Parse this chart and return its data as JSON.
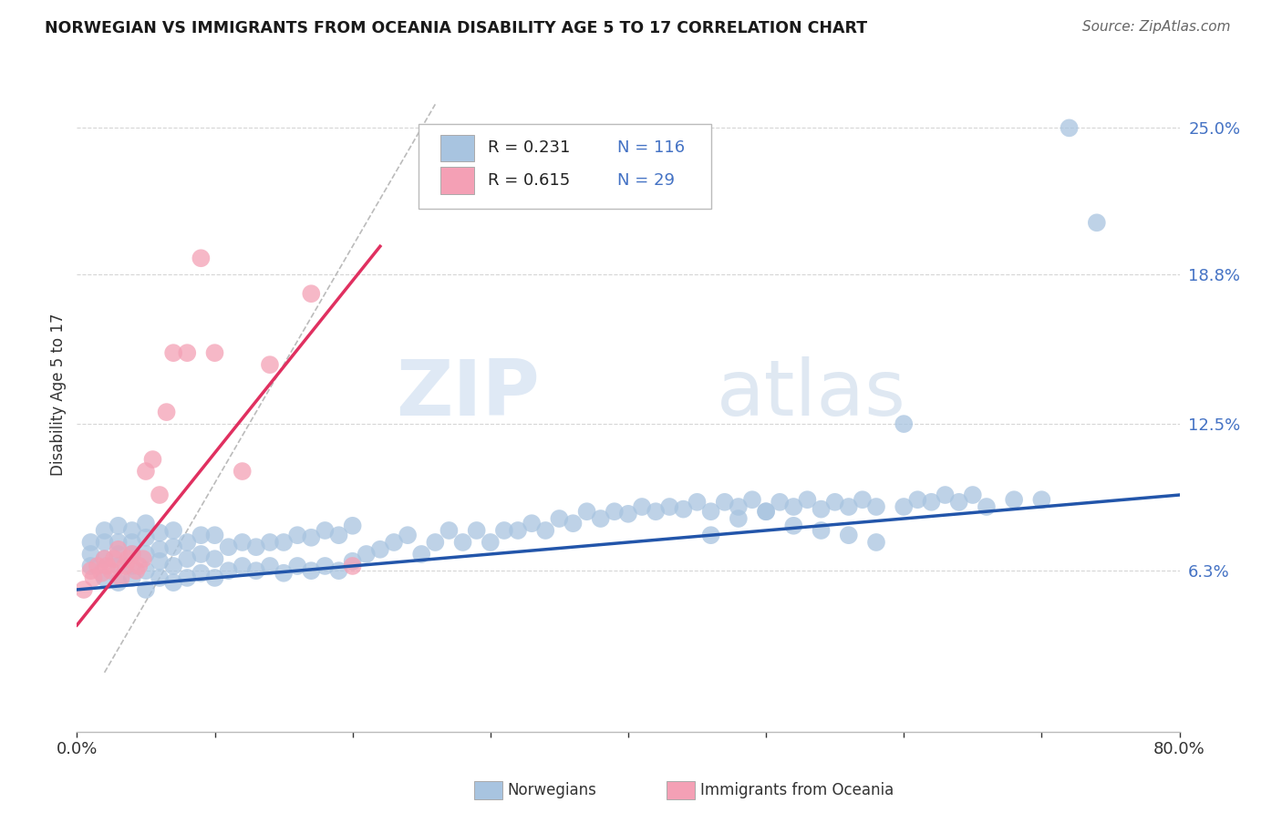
{
  "title": "NORWEGIAN VS IMMIGRANTS FROM OCEANIA DISABILITY AGE 5 TO 17 CORRELATION CHART",
  "source": "Source: ZipAtlas.com",
  "ylabel": "Disability Age 5 to 17",
  "xlim": [
    0.0,
    0.8
  ],
  "ylim": [
    -0.005,
    0.28
  ],
  "ytick_positions": [
    0.063,
    0.125,
    0.188,
    0.25
  ],
  "ytick_labels": [
    "6.3%",
    "12.5%",
    "18.8%",
    "25.0%"
  ],
  "norwegian_color": "#a8c4e0",
  "immigrant_color": "#f4a0b5",
  "norwegian_line_color": "#2255aa",
  "immigrant_line_color": "#e03060",
  "watermark_zip": "ZIP",
  "watermark_atlas": "atlas",
  "legend_R_norwegian": "R = 0.231",
  "legend_N_norwegian": "N = 116",
  "legend_R_immigrant": "R = 0.615",
  "legend_N_immigrant": "N = 29",
  "grid_color": "#cccccc",
  "background_color": "#ffffff",
  "nor_x": [
    0.01,
    0.01,
    0.01,
    0.02,
    0.02,
    0.02,
    0.02,
    0.03,
    0.03,
    0.03,
    0.03,
    0.03,
    0.04,
    0.04,
    0.04,
    0.04,
    0.04,
    0.05,
    0.05,
    0.05,
    0.05,
    0.05,
    0.06,
    0.06,
    0.06,
    0.06,
    0.07,
    0.07,
    0.07,
    0.07,
    0.08,
    0.08,
    0.08,
    0.09,
    0.09,
    0.09,
    0.1,
    0.1,
    0.1,
    0.11,
    0.11,
    0.12,
    0.12,
    0.13,
    0.13,
    0.14,
    0.14,
    0.15,
    0.15,
    0.16,
    0.16,
    0.17,
    0.17,
    0.18,
    0.18,
    0.19,
    0.19,
    0.2,
    0.2,
    0.21,
    0.22,
    0.23,
    0.24,
    0.25,
    0.26,
    0.27,
    0.28,
    0.29,
    0.3,
    0.31,
    0.32,
    0.33,
    0.34,
    0.35,
    0.36,
    0.37,
    0.38,
    0.39,
    0.4,
    0.41,
    0.42,
    0.43,
    0.44,
    0.45,
    0.46,
    0.47,
    0.48,
    0.49,
    0.5,
    0.51,
    0.52,
    0.53,
    0.54,
    0.55,
    0.56,
    0.57,
    0.58,
    0.6,
    0.61,
    0.62,
    0.63,
    0.64,
    0.65,
    0.66,
    0.68,
    0.7,
    0.72,
    0.74,
    0.46,
    0.48,
    0.5,
    0.52,
    0.54,
    0.56,
    0.58,
    0.6
  ],
  "nor_y": [
    0.065,
    0.07,
    0.075,
    0.06,
    0.068,
    0.075,
    0.08,
    0.058,
    0.065,
    0.07,
    0.075,
    0.082,
    0.06,
    0.065,
    0.07,
    0.075,
    0.08,
    0.055,
    0.063,
    0.07,
    0.077,
    0.083,
    0.06,
    0.067,
    0.072,
    0.079,
    0.058,
    0.065,
    0.073,
    0.08,
    0.06,
    0.068,
    0.075,
    0.062,
    0.07,
    0.078,
    0.06,
    0.068,
    0.078,
    0.063,
    0.073,
    0.065,
    0.075,
    0.063,
    0.073,
    0.065,
    0.075,
    0.062,
    0.075,
    0.065,
    0.078,
    0.063,
    0.077,
    0.065,
    0.08,
    0.063,
    0.078,
    0.067,
    0.082,
    0.07,
    0.072,
    0.075,
    0.078,
    0.07,
    0.075,
    0.08,
    0.075,
    0.08,
    0.075,
    0.08,
    0.08,
    0.083,
    0.08,
    0.085,
    0.083,
    0.088,
    0.085,
    0.088,
    0.087,
    0.09,
    0.088,
    0.09,
    0.089,
    0.092,
    0.088,
    0.092,
    0.09,
    0.093,
    0.088,
    0.092,
    0.09,
    0.093,
    0.089,
    0.092,
    0.09,
    0.093,
    0.09,
    0.09,
    0.093,
    0.092,
    0.095,
    0.092,
    0.095,
    0.09,
    0.093,
    0.093,
    0.25,
    0.21,
    0.078,
    0.085,
    0.088,
    0.082,
    0.08,
    0.078,
    0.075,
    0.125
  ],
  "imm_x": [
    0.005,
    0.01,
    0.012,
    0.015,
    0.018,
    0.02,
    0.022,
    0.025,
    0.027,
    0.03,
    0.032,
    0.035,
    0.037,
    0.04,
    0.043,
    0.045,
    0.048,
    0.05,
    0.055,
    0.06,
    0.065,
    0.07,
    0.08,
    0.09,
    0.1,
    0.12,
    0.14,
    0.17,
    0.2
  ],
  "imm_y": [
    0.055,
    0.063,
    0.06,
    0.065,
    0.062,
    0.068,
    0.065,
    0.063,
    0.068,
    0.072,
    0.06,
    0.065,
    0.068,
    0.07,
    0.063,
    0.065,
    0.068,
    0.105,
    0.11,
    0.095,
    0.13,
    0.155,
    0.155,
    0.195,
    0.155,
    0.105,
    0.15,
    0.18,
    0.065
  ]
}
